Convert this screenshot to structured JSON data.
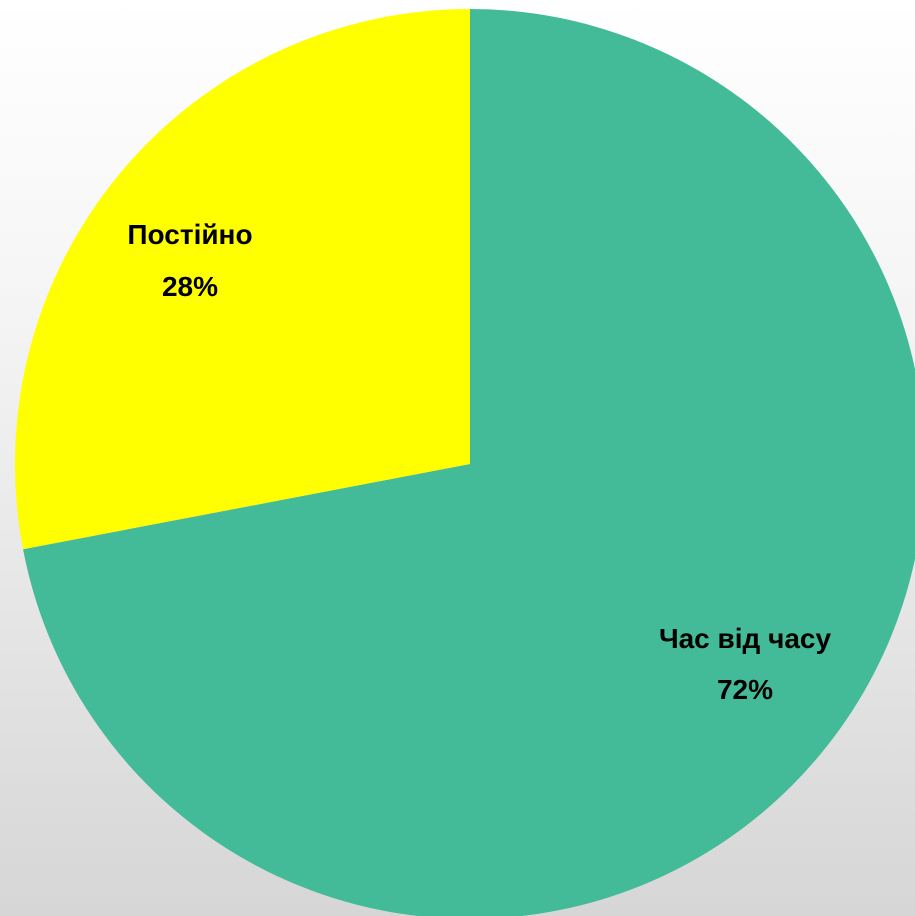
{
  "chart_data": {
    "type": "pie",
    "title": "",
    "slices": [
      {
        "label": "Час від часу",
        "percent_label": "72%",
        "value": 72,
        "color": "#43BA98"
      },
      {
        "label": "Постійно",
        "percent_label": "28%",
        "value": 28,
        "color": "#FFFF00"
      }
    ],
    "start_angle": "12 o'clock",
    "direction": "clockwise",
    "legend": "none",
    "data_labels": "inside slices, category name and percentage"
  }
}
